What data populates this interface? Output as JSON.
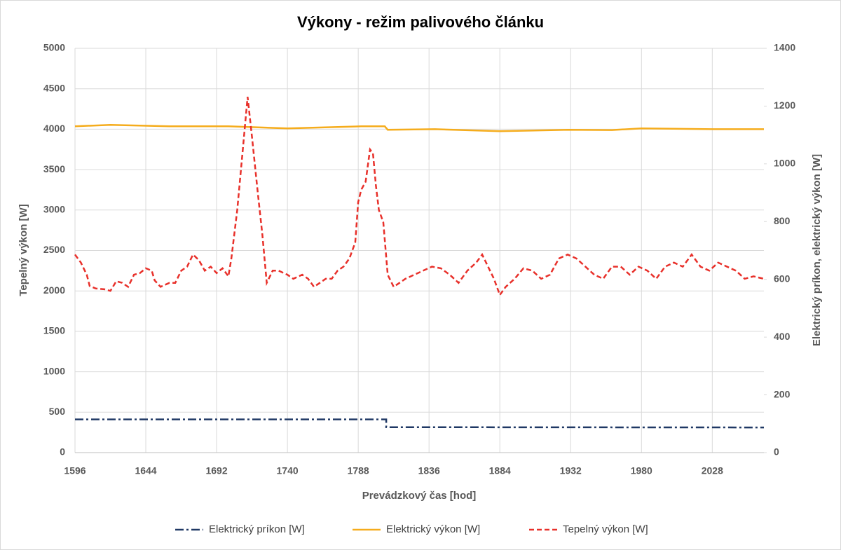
{
  "chart_data": {
    "type": "line",
    "title": "Výkony - režim palivového článku",
    "x_label": "Prevádzkový čas [hod]",
    "y_label": "Tepelný výkon [W]",
    "y2_label": "Elektrický príkon, elektrický výkon [W]",
    "xlim": [
      1596,
      2063
    ],
    "xticks": [
      1596,
      1644,
      1692,
      1740,
      1788,
      1836,
      1884,
      1932,
      1980,
      2028
    ],
    "ylim": [
      0,
      5000
    ],
    "yticks": [
      0,
      500,
      1000,
      1500,
      2000,
      2500,
      3000,
      3500,
      4000,
      4500,
      5000
    ],
    "y2lim": [
      0,
      1400
    ],
    "y2ticks": [
      0,
      200,
      400,
      600,
      800,
      1000,
      1200,
      1400
    ],
    "grid": true,
    "legend": "bottom",
    "series": [
      {
        "name": "Elektrický príkon [W]",
        "color": "#1f3864",
        "dash": "dashdot",
        "axis": "y2",
        "x": [
          1596,
          1807,
          1807,
          2063
        ],
        "values": [
          115,
          115,
          88,
          87
        ]
      },
      {
        "name": "Elektrický výkon [W]",
        "color": "#f5ac1c",
        "dash": "solid",
        "axis": "y2",
        "x": [
          1596,
          1620,
          1660,
          1700,
          1740,
          1790,
          1806,
          1808,
          1840,
          1884,
          1930,
          1960,
          1980,
          2030,
          2063
        ],
        "values": [
          1130,
          1135,
          1130,
          1130,
          1123,
          1130,
          1130,
          1118,
          1120,
          1113,
          1118,
          1117,
          1123,
          1120,
          1120
        ]
      },
      {
        "name": "Tepelný výkon [W]",
        "color": "#e8302a",
        "dash": "dash",
        "axis": "y",
        "x": [
          1596,
          1600,
          1604,
          1606,
          1610,
          1616,
          1620,
          1624,
          1628,
          1632,
          1636,
          1640,
          1644,
          1648,
          1650,
          1654,
          1660,
          1664,
          1668,
          1672,
          1676,
          1680,
          1684,
          1688,
          1692,
          1696,
          1700,
          1702,
          1706,
          1710,
          1713,
          1716,
          1720,
          1723,
          1726,
          1730,
          1734,
          1740,
          1744,
          1750,
          1754,
          1758,
          1762,
          1766,
          1770,
          1774,
          1778,
          1782,
          1786,
          1788,
          1790,
          1793,
          1796,
          1798,
          1800,
          1802,
          1805,
          1808,
          1812,
          1816,
          1820,
          1826,
          1832,
          1838,
          1844,
          1850,
          1856,
          1862,
          1868,
          1872,
          1876,
          1880,
          1884,
          1888,
          1894,
          1900,
          1906,
          1912,
          1918,
          1924,
          1930,
          1936,
          1942,
          1948,
          1954,
          1960,
          1966,
          1972,
          1978,
          1984,
          1990,
          1996,
          2002,
          2008,
          2014,
          2020,
          2026,
          2032,
          2038,
          2044,
          2050,
          2056,
          2063
        ],
        "values": [
          2450,
          2350,
          2200,
          2060,
          2030,
          2020,
          2000,
          2120,
          2100,
          2050,
          2200,
          2220,
          2280,
          2250,
          2130,
          2050,
          2100,
          2100,
          2250,
          2300,
          2450,
          2380,
          2250,
          2300,
          2220,
          2280,
          2180,
          2400,
          3000,
          3800,
          4400,
          3900,
          3200,
          2700,
          2100,
          2250,
          2250,
          2200,
          2150,
          2200,
          2150,
          2050,
          2100,
          2150,
          2150,
          2250,
          2300,
          2400,
          2600,
          3100,
          3250,
          3350,
          3750,
          3700,
          3300,
          3000,
          2850,
          2200,
          2050,
          2100,
          2150,
          2200,
          2250,
          2300,
          2280,
          2200,
          2100,
          2250,
          2350,
          2450,
          2300,
          2150,
          1950,
          2050,
          2150,
          2280,
          2250,
          2150,
          2200,
          2400,
          2450,
          2400,
          2300,
          2200,
          2150,
          2300,
          2300,
          2200,
          2300,
          2250,
          2150,
          2300,
          2350,
          2300,
          2450,
          2300,
          2250,
          2350,
          2300,
          2250,
          2150,
          2180,
          2150
        ]
      }
    ]
  }
}
